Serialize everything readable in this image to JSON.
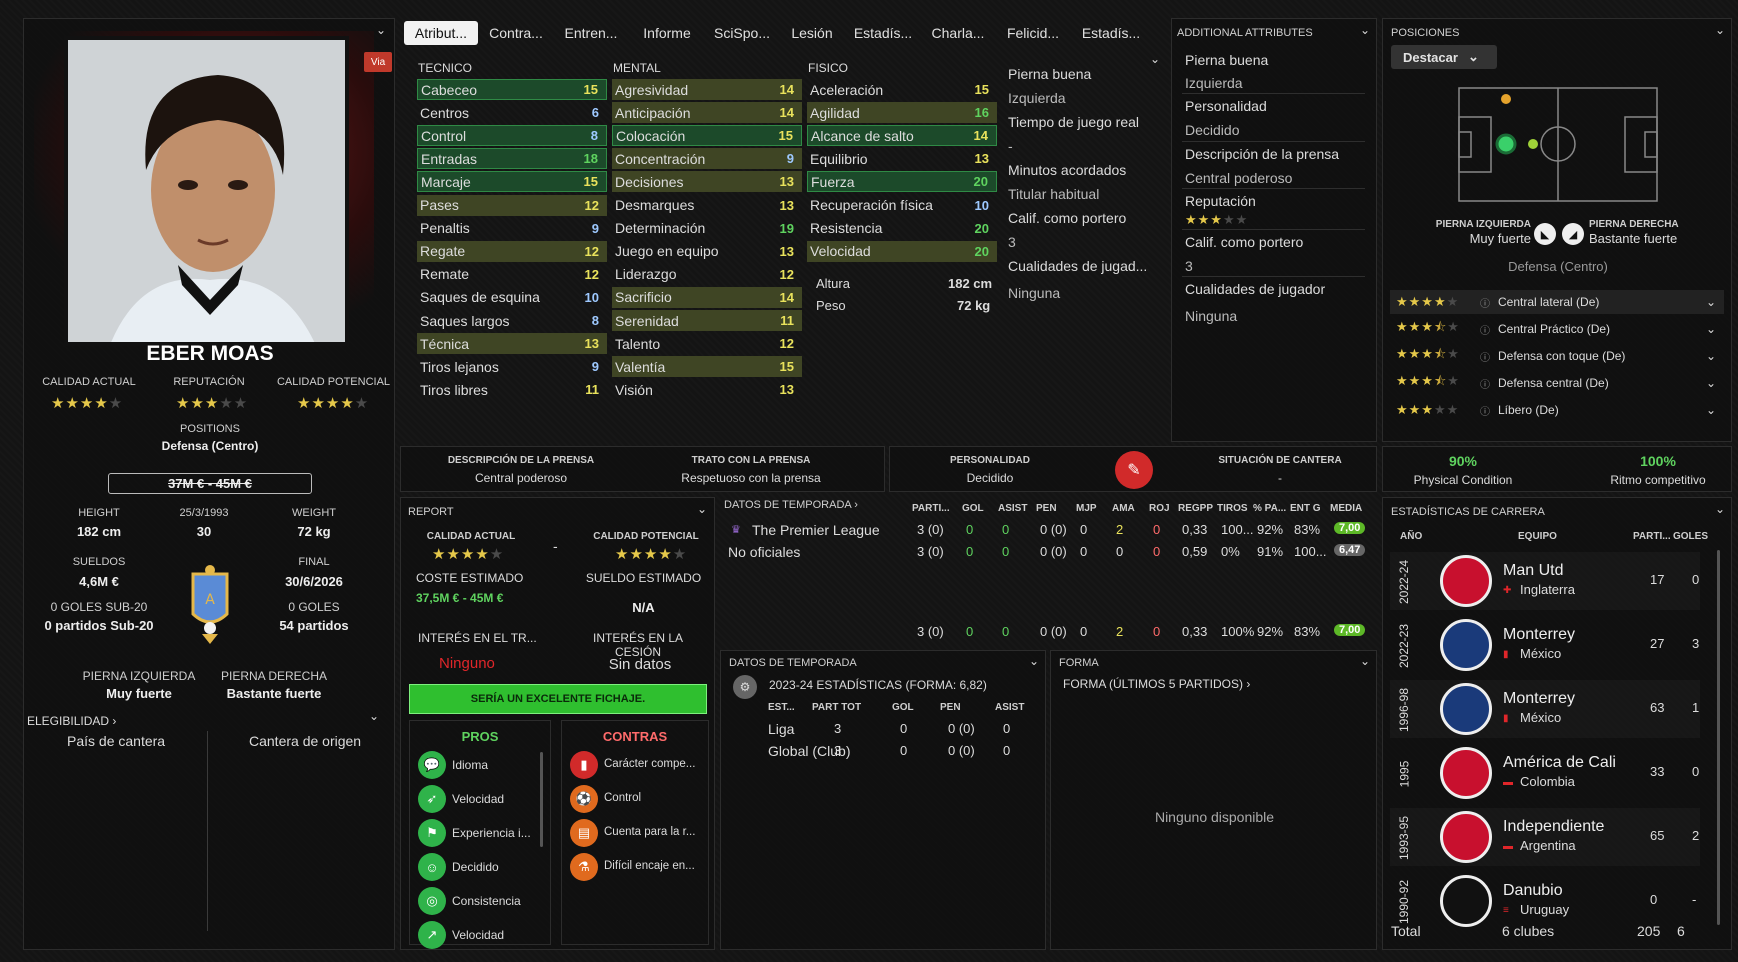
{
  "player": {
    "name": "EBER MOAS",
    "via_badge": "Via",
    "calidad_actual_label": "CALIDAD ACTUAL",
    "reputacion_label": "REPUTACIÓN",
    "calidad_potencial_label": "CALIDAD POTENCIAL",
    "calidad_actual_stars": 4,
    "reputacion_stars": 3,
    "calidad_potencial_stars": 4,
    "positions_label": "POSITIONS",
    "positions_value": "Defensa (Centro)",
    "value_range": "37M € - 45M €",
    "height_label": "HEIGHT",
    "height_value": "182 cm",
    "dob_label": "25/3/1993",
    "age_value": "30",
    "weight_label": "WEIGHT",
    "weight_value": "72 kg",
    "sueldos_label": "SUELDOS",
    "sueldos_value": "4,6M €",
    "final_label": "FINAL",
    "final_value": "30/6/2026",
    "goles_sub20_label": "0 GOLES SUB-20",
    "partidos_sub20_value": "0 partidos Sub-20",
    "goles_label": "0 GOLES",
    "partidos_value": "54 partidos",
    "pierna_izq_label": "PIERNA IZQUIERDA",
    "pierna_izq_value": "Muy fuerte",
    "pierna_der_label": "PIERNA DERECHA",
    "pierna_der_value": "Bastante fuerte",
    "elegibilidad_label": "ELEGIBILIDAD",
    "pais_cantera": "País de cantera",
    "cantera_origen": "Cantera de origen"
  },
  "tabs": [
    "Atribut...",
    "Contra...",
    "Entren...",
    "Informe",
    "SciSpo...",
    "Lesión",
    "Estadís...",
    "Charla...",
    "Felicid...",
    "Estadís..."
  ],
  "attributes": {
    "tecnico_header": "TECNICO",
    "mental_header": "MENTAL",
    "fisico_header": "FISICO",
    "tecnico": [
      {
        "name": "Cabeceo",
        "value": "15"
      },
      {
        "name": "Centros",
        "value": "6"
      },
      {
        "name": "Control",
        "value": "8"
      },
      {
        "name": "Entradas",
        "value": "18"
      },
      {
        "name": "Marcaje",
        "value": "15"
      },
      {
        "name": "Pases",
        "value": "12"
      },
      {
        "name": "Penaltis",
        "value": "9"
      },
      {
        "name": "Regate",
        "value": "12"
      },
      {
        "name": "Remate",
        "value": "12"
      },
      {
        "name": "Saques de esquina",
        "value": "10"
      },
      {
        "name": "Saques largos",
        "value": "8"
      },
      {
        "name": "Técnica",
        "value": "13"
      },
      {
        "name": "Tiros lejanos",
        "value": "9"
      },
      {
        "name": "Tiros libres",
        "value": "11"
      }
    ],
    "mental": [
      {
        "name": "Agresividad",
        "value": "14"
      },
      {
        "name": "Anticipación",
        "value": "14"
      },
      {
        "name": "Colocación",
        "value": "15"
      },
      {
        "name": "Concentración",
        "value": "9"
      },
      {
        "name": "Decisiones",
        "value": "13"
      },
      {
        "name": "Desmarques",
        "value": "13"
      },
      {
        "name": "Determinación",
        "value": "19"
      },
      {
        "name": "Juego en equipo",
        "value": "13"
      },
      {
        "name": "Liderazgo",
        "value": "12"
      },
      {
        "name": "Sacrificio",
        "value": "14"
      },
      {
        "name": "Serenidad",
        "value": "11"
      },
      {
        "name": "Talento",
        "value": "12"
      },
      {
        "name": "Valentía",
        "value": "15"
      },
      {
        "name": "Visión",
        "value": "13"
      }
    ],
    "fisico": [
      {
        "name": "Aceleración",
        "value": "15"
      },
      {
        "name": "Agilidad",
        "value": "16"
      },
      {
        "name": "Alcance de salto",
        "value": "14"
      },
      {
        "name": "Equilibrio",
        "value": "13"
      },
      {
        "name": "Fuerza",
        "value": "20"
      },
      {
        "name": "Recuperación física",
        "value": "10"
      },
      {
        "name": "Resistencia",
        "value": "20"
      },
      {
        "name": "Velocidad",
        "value": "20"
      }
    ],
    "altura_label": "Altura",
    "altura_value": "182 cm",
    "peso_label": "Peso",
    "peso_value": "72 kg",
    "side": {
      "pierna_buena_label": "Pierna buena",
      "pierna_buena_value": "Izquierda",
      "tiempo_label": "Tiempo de juego real",
      "tiempo_value": "-",
      "minutos_label": "Minutos acordados",
      "minutos_value": "Titular habitual",
      "calif_label": "Calif. como portero",
      "calif_value": "3",
      "cualidades_label": "Cualidades de jugad...",
      "cualidades_value": "Ninguna"
    }
  },
  "additional": {
    "header": "ADDITIONAL ATTRIBUTES",
    "pierna_buena_label": "Pierna buena",
    "pierna_buena_value": "Izquierda",
    "personalidad_label": "Personalidad",
    "personalidad_value": "Decidido",
    "prensa_label": "Descripción de la prensa",
    "prensa_value": "Central poderoso",
    "reputacion_label": "Reputación",
    "reputacion_stars": 3,
    "calif_label": "Calif. como portero",
    "calif_value": "3",
    "cualidades_label": "Cualidades de jugador",
    "cualidades_value": "Ninguna"
  },
  "positions": {
    "header": "POSICIONES",
    "dropdown": "Destacar",
    "pierna_izq_label": "PIERNA IZQUIERDA",
    "pierna_izq_value": "Muy fuerte",
    "pierna_der_label": "PIERNA DERECHA",
    "pierna_der_value": "Bastante fuerte",
    "main_position": "Defensa (Centro)",
    "roles": [
      {
        "name": "Central lateral (De)",
        "stars": 4
      },
      {
        "name": "Central Práctico (De)",
        "stars": 3.5
      },
      {
        "name": "Defensa con toque (De)",
        "stars": 3.5
      },
      {
        "name": "Defensa central (De)",
        "stars": 3.5
      },
      {
        "name": "Líbero (De)",
        "stars": 3
      }
    ]
  },
  "press": {
    "prensa_label": "DESCRIPCIÓN DE LA PRENSA",
    "prensa_value": "Central poderoso",
    "trato_label": "TRATO CON LA PRENSA",
    "trato_value": "Respetuoso con la prensa",
    "personalidad_label": "PERSONALIDAD",
    "personalidad_value": "Decidido",
    "cantera_label": "SITUACIÓN DE CANTERA",
    "cantera_value": "-"
  },
  "condition": {
    "physical_value": "90%",
    "physical_label": "Physical Condition",
    "ritmo_value": "100%",
    "ritmo_label": "Ritmo competitivo"
  },
  "report": {
    "header": "REPORT",
    "calidad_actual_label": "CALIDAD ACTUAL",
    "calidad_actual_stars": 4,
    "dash": "-",
    "calidad_potencial_label": "CALIDAD POTENCIAL",
    "calidad_potencial_stars": 4,
    "coste_label": "COSTE ESTIMADO",
    "coste_value": "37,5M € - 45M €",
    "sueldo_label": "SUELDO ESTIMADO",
    "sueldo_value": "N/A",
    "interes_tr_label": "INTERÉS EN EL TR...",
    "interes_tr_value": "Ninguno",
    "interes_cesion_label": "INTERÉS EN LA CESIÓN",
    "interes_cesion_value": "Sin datos",
    "verdict": "SERÍA UN EXCELENTE FICHAJE.",
    "pros_label": "PROS",
    "contras_label": "CONTRAS",
    "pros": [
      {
        "name": "Idioma",
        "icon": "speech-icon"
      },
      {
        "name": "Velocidad",
        "icon": "runner-icon"
      },
      {
        "name": "Experiencia i...",
        "icon": "flag-icon"
      },
      {
        "name": "Decidido",
        "icon": "head-icon"
      },
      {
        "name": "Consistencia",
        "icon": "target-icon"
      },
      {
        "name": "Velocidad",
        "icon": "boot-icon"
      }
    ],
    "contras": [
      {
        "name": "Carácter compe...",
        "icon": "card-icon"
      },
      {
        "name": "Control",
        "icon": "ball-icon"
      },
      {
        "name": "Cuenta para la r...",
        "icon": "clipboard-icon"
      },
      {
        "name": "Difícil encaje en...",
        "icon": "flask-icon"
      }
    ]
  },
  "season": {
    "header": "DATOS DE TEMPORADA",
    "columns": [
      "PARTI...",
      "GOL",
      "ASIST",
      "PEN",
      "MJP",
      "AMA",
      "ROJ",
      "REGPP",
      "TIROS",
      "% PA...",
      "ENT G",
      "MEDIA"
    ],
    "rows": [
      {
        "comp": "The Premier League",
        "vals": [
          "3 (0)",
          "0",
          "0",
          "0 (0)",
          "0",
          "2",
          "0",
          "0,33",
          "100...",
          "92%",
          "83%",
          "7,00"
        ]
      },
      {
        "comp": "No oficiales",
        "vals": [
          "3 (0)",
          "0",
          "0",
          "0 (0)",
          "0",
          "0",
          "0",
          "0,59",
          "0%",
          "91%",
          "100...",
          "6,47"
        ]
      }
    ],
    "total": [
      "3 (0)",
      "0",
      "0",
      "0 (0)",
      "0",
      "2",
      "0",
      "0,33",
      "100%",
      "92%",
      "83%",
      "7,00"
    ]
  },
  "season2": {
    "header": "DATOS DE TEMPORADA",
    "subtitle": "2023-24 ESTADÍSTICAS (FORMA: 6,82)",
    "columns": [
      "EST...",
      "PART TOT",
      "GOL",
      "PEN",
      "ASIST"
    ],
    "rows": [
      {
        "name": "Liga",
        "vals": [
          "3",
          "0",
          "0 (0)",
          "0"
        ]
      },
      {
        "name": "Global (Club)",
        "vals": [
          "3",
          "0",
          "0 (0)",
          "0"
        ]
      }
    ]
  },
  "forma": {
    "header": "FORMA",
    "subtitle": "FORMA (ÚLTIMOS 5 PARTIDOS)",
    "empty": "Ninguno disponible"
  },
  "career": {
    "header": "ESTADÍSTICAS DE CARRERA",
    "col_year": "AÑO",
    "col_team": "EQUIPO",
    "col_parti": "PARTI...",
    "col_goles": "GOLES",
    "rows": [
      {
        "year": "2022-24",
        "team": "Man Utd",
        "country": "Inglaterra",
        "parti": "17",
        "goles": "0"
      },
      {
        "year": "2022-23",
        "team": "Monterrey",
        "country": "México",
        "parti": "27",
        "goles": "3"
      },
      {
        "year": "1996-98",
        "team": "Monterrey",
        "country": "México",
        "parti": "63",
        "goles": "1"
      },
      {
        "year": "1995",
        "team": "América de Cali",
        "country": "Colombia",
        "parti": "33",
        "goles": "0"
      },
      {
        "year": "1993-95",
        "team": "Independiente",
        "country": "Argentina",
        "parti": "65",
        "goles": "2"
      },
      {
        "year": "1990-92",
        "team": "Danubio",
        "country": "Uruguay",
        "parti": "0",
        "goles": "-"
      }
    ],
    "total_label": "Total",
    "total_clubs": "6 clubes",
    "total_parti": "205",
    "total_goles": "6"
  },
  "colors": {
    "green": "#5fd35f",
    "yellow": "#e9e25c",
    "red": "#e0262a",
    "blue": "#9ec9ff"
  }
}
